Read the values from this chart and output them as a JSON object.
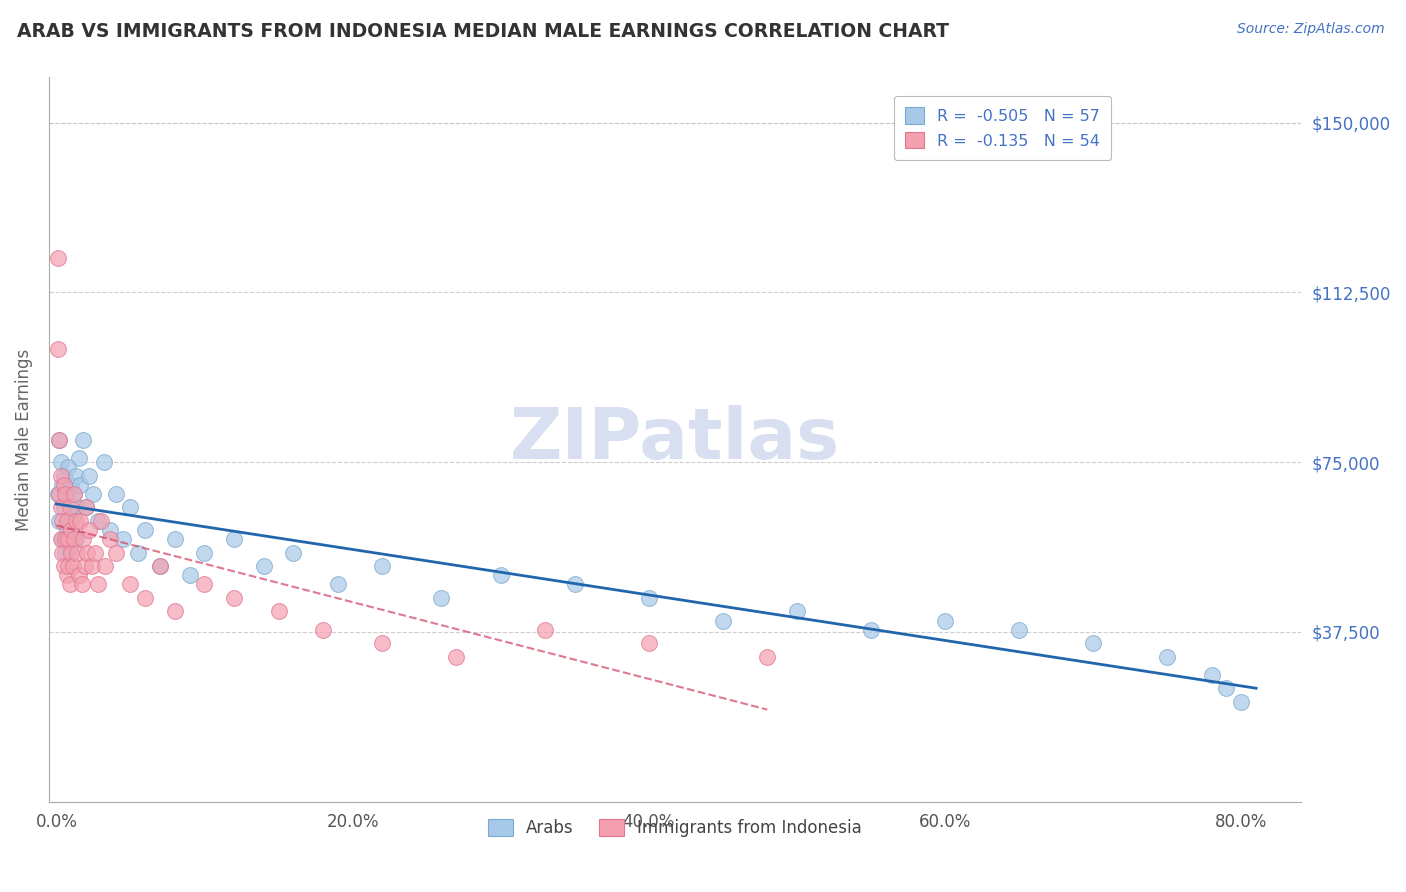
{
  "title": "ARAB VS IMMIGRANTS FROM INDONESIA MEDIAN MALE EARNINGS CORRELATION CHART",
  "source": "Source: ZipAtlas.com",
  "ylabel": "Median Male Earnings",
  "xlabel_ticks": [
    "0.0%",
    "20.0%",
    "40.0%",
    "60.0%",
    "80.0%"
  ],
  "ytick_labels": [
    "$37,500",
    "$75,000",
    "$112,500",
    "$150,000"
  ],
  "ytick_values": [
    37500,
    75000,
    112500,
    150000
  ],
  "ymin": 0,
  "ymax": 160000,
  "xmin": -0.005,
  "xmax": 0.84,
  "legend_blue_label": "R =  -0.505   N = 57",
  "legend_pink_label": "R =  -0.135   N = 54",
  "legend_label_arabs": "Arabs",
  "legend_label_indonesia": "Immigrants from Indonesia",
  "watermark": "ZIPatlas",
  "blue_color": "#a8c8e8",
  "pink_color": "#f4a0b0",
  "blue_edge_color": "#7aaacf",
  "pink_edge_color": "#e07890",
  "blue_line_color": "#2166ac",
  "pink_line_color": "#d04060",
  "title_color": "#333333",
  "axis_label_color": "#666666",
  "ytick_color": "#4472c4",
  "grid_color": "#c8c8c8",
  "watermark_color": "#d8dff0",
  "source_color": "#4472c4",
  "legend_r_color": "#4472c4",
  "legend_border_color": "#bbbbbb",
  "arab_x": [
    0.001,
    0.002,
    0.002,
    0.003,
    0.004,
    0.004,
    0.005,
    0.005,
    0.006,
    0.007,
    0.007,
    0.008,
    0.009,
    0.009,
    0.01,
    0.011,
    0.012,
    0.013,
    0.013,
    0.014,
    0.015,
    0.016,
    0.018,
    0.02,
    0.022,
    0.025,
    0.028,
    0.032,
    0.036,
    0.04,
    0.045,
    0.05,
    0.055,
    0.06,
    0.07,
    0.08,
    0.09,
    0.1,
    0.12,
    0.14,
    0.16,
    0.19,
    0.22,
    0.26,
    0.3,
    0.35,
    0.4,
    0.45,
    0.5,
    0.55,
    0.6,
    0.65,
    0.7,
    0.75,
    0.78,
    0.79,
    0.8
  ],
  "arab_y": [
    68000,
    80000,
    62000,
    75000,
    70000,
    58000,
    65000,
    72000,
    55000,
    68000,
    60000,
    74000,
    62000,
    56000,
    70000,
    63000,
    68000,
    58000,
    72000,
    65000,
    76000,
    70000,
    80000,
    65000,
    72000,
    68000,
    62000,
    75000,
    60000,
    68000,
    58000,
    65000,
    55000,
    60000,
    52000,
    58000,
    50000,
    55000,
    58000,
    52000,
    55000,
    48000,
    52000,
    45000,
    50000,
    48000,
    45000,
    40000,
    42000,
    38000,
    40000,
    38000,
    35000,
    32000,
    28000,
    25000,
    22000
  ],
  "indo_x": [
    0.001,
    0.001,
    0.002,
    0.002,
    0.003,
    0.003,
    0.003,
    0.004,
    0.004,
    0.005,
    0.005,
    0.006,
    0.006,
    0.007,
    0.007,
    0.008,
    0.008,
    0.009,
    0.009,
    0.01,
    0.01,
    0.011,
    0.012,
    0.012,
    0.013,
    0.014,
    0.015,
    0.016,
    0.017,
    0.018,
    0.019,
    0.02,
    0.021,
    0.022,
    0.024,
    0.026,
    0.028,
    0.03,
    0.033,
    0.036,
    0.04,
    0.05,
    0.06,
    0.07,
    0.08,
    0.1,
    0.12,
    0.15,
    0.18,
    0.22,
    0.27,
    0.33,
    0.4,
    0.48
  ],
  "indo_y": [
    120000,
    100000,
    80000,
    68000,
    72000,
    65000,
    58000,
    62000,
    55000,
    70000,
    52000,
    68000,
    58000,
    62000,
    50000,
    58000,
    52000,
    65000,
    48000,
    60000,
    55000,
    52000,
    68000,
    58000,
    62000,
    55000,
    50000,
    62000,
    48000,
    58000,
    52000,
    65000,
    55000,
    60000,
    52000,
    55000,
    48000,
    62000,
    52000,
    58000,
    55000,
    48000,
    45000,
    52000,
    42000,
    48000,
    45000,
    42000,
    38000,
    35000,
    32000,
    38000,
    35000,
    32000
  ]
}
